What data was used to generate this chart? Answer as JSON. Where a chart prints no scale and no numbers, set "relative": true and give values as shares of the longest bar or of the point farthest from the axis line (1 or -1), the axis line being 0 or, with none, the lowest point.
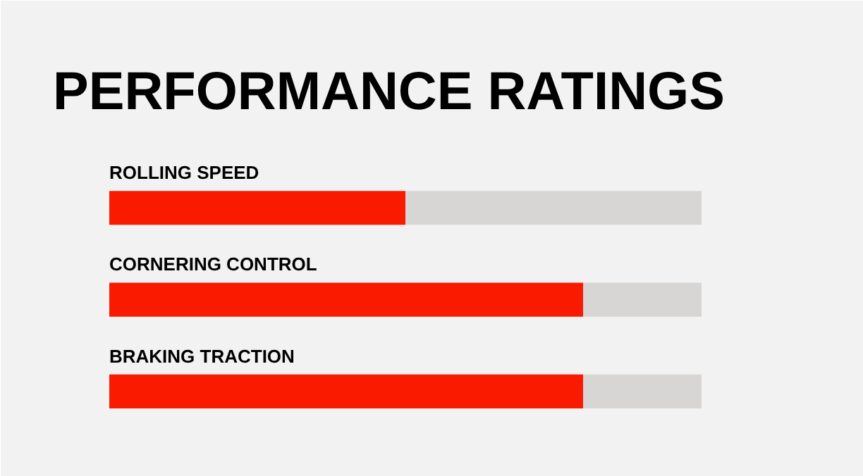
{
  "chart_data": {
    "type": "bar",
    "title": "PERFORMANCE RATINGS",
    "orientation": "horizontal",
    "stacked": true,
    "relative": true,
    "categories": [
      "ROLLING SPEED",
      "CORNERING CONTROL",
      "BRAKING TRACTION"
    ],
    "series": [
      {
        "color": "#fa1a00",
        "values": [
          0.5,
          0.8,
          0.8
        ]
      },
      {
        "color": "#d7d6d4",
        "values": [
          0.5,
          0.2,
          0.2
        ]
      }
    ]
  }
}
